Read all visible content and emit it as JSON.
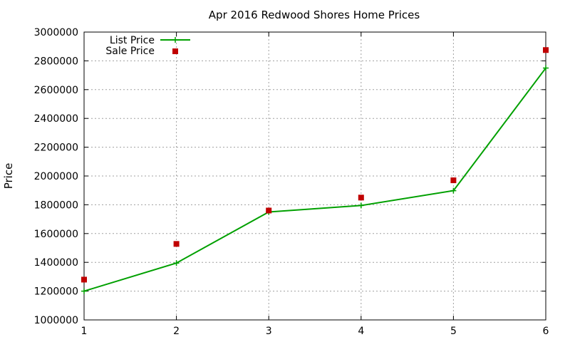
{
  "chart_data": {
    "type": "line",
    "title": "Apr 2016 Redwood Shores Home Prices",
    "xlabel": "",
    "ylabel": "Price",
    "x": [
      1,
      2,
      3,
      4,
      5,
      6
    ],
    "xlim": [
      1,
      6
    ],
    "ylim": [
      1000000,
      3000000
    ],
    "x_ticks": [
      "1",
      "2",
      "3",
      "4",
      "5",
      "6"
    ],
    "y_ticks": [
      "1000000",
      "1200000",
      "1400000",
      "1600000",
      "1800000",
      "2000000",
      "2200000",
      "2400000",
      "2600000",
      "2800000",
      "3000000"
    ],
    "grid": true,
    "legend_position": "top-left",
    "series": [
      {
        "name": "List Price",
        "style": "line+cross",
        "color": "#00a000",
        "values": [
          1200000,
          1395000,
          1750000,
          1795000,
          1898000,
          2750000
        ]
      },
      {
        "name": "Sale Price",
        "style": "square-markers",
        "color": "#c00000",
        "values": [
          1280000,
          1528000,
          1760000,
          1850000,
          1970000,
          2875000
        ]
      }
    ]
  }
}
